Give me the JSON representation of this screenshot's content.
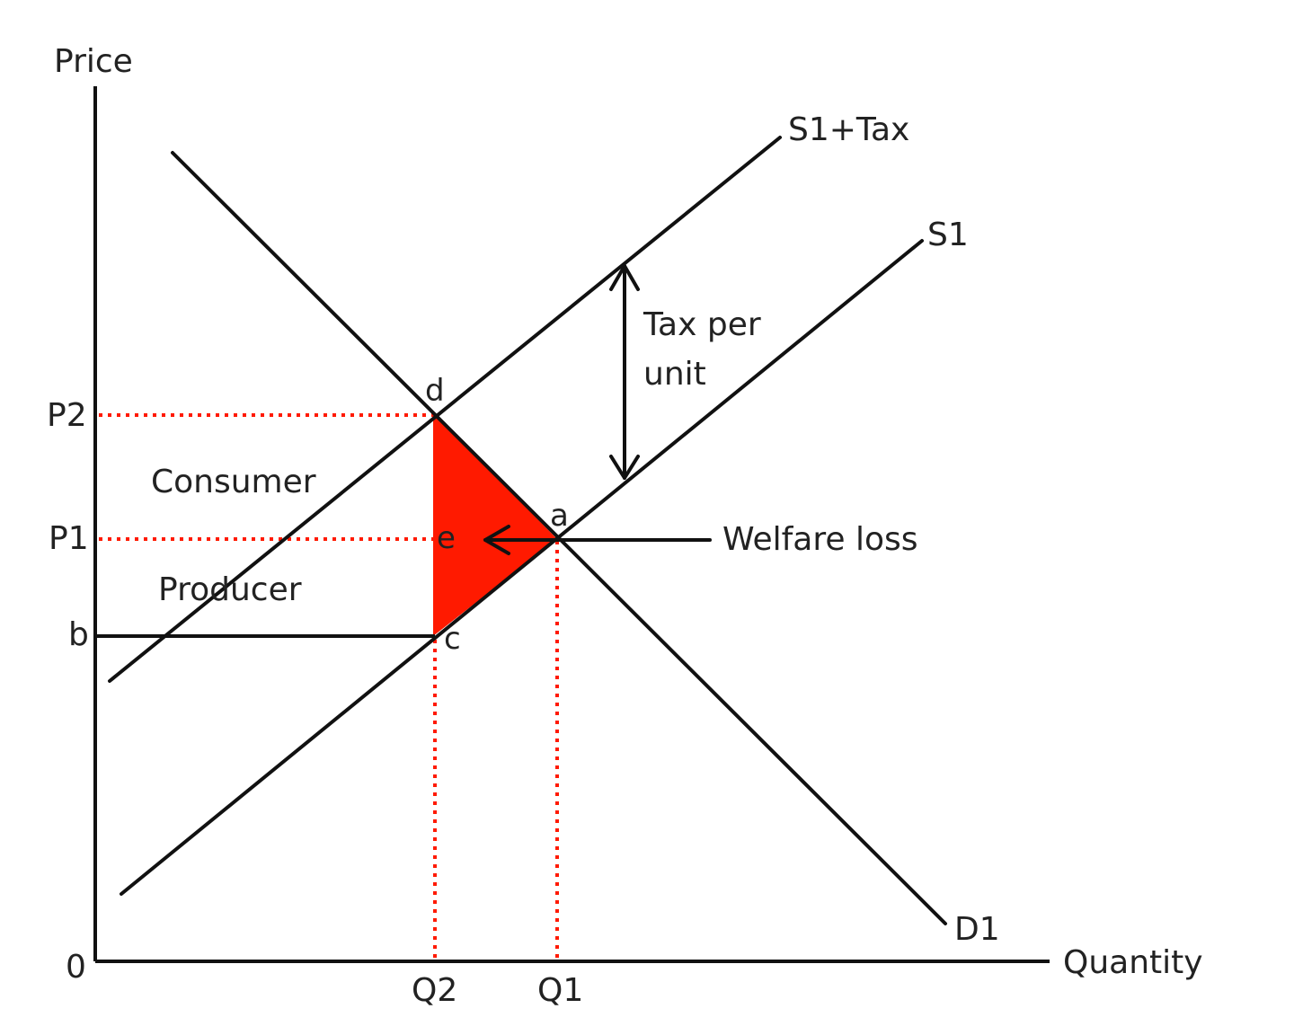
{
  "axes": {
    "y_label": "Price",
    "x_label": "Quantity",
    "origin_label": "0"
  },
  "curves": {
    "supply_with_tax": "S1+Tax",
    "supply": "S1",
    "demand": "D1"
  },
  "price_ticks": {
    "p2": "P2",
    "p1": "P1",
    "b": "b"
  },
  "quantity_ticks": {
    "q2": "Q2",
    "q1": "Q1"
  },
  "points": {
    "d": "d",
    "e": "e",
    "a": "a",
    "c": "c"
  },
  "regions": {
    "consumer": "Consumer",
    "producer": "Producer"
  },
  "annotations": {
    "tax_line1": "Tax per",
    "tax_line2": "unit",
    "welfare_loss": "Welfare loss"
  },
  "colors": {
    "welfare_loss_fill": "#ff1a00",
    "guide_lines": "#ff1a00",
    "curves": "#111111"
  }
}
